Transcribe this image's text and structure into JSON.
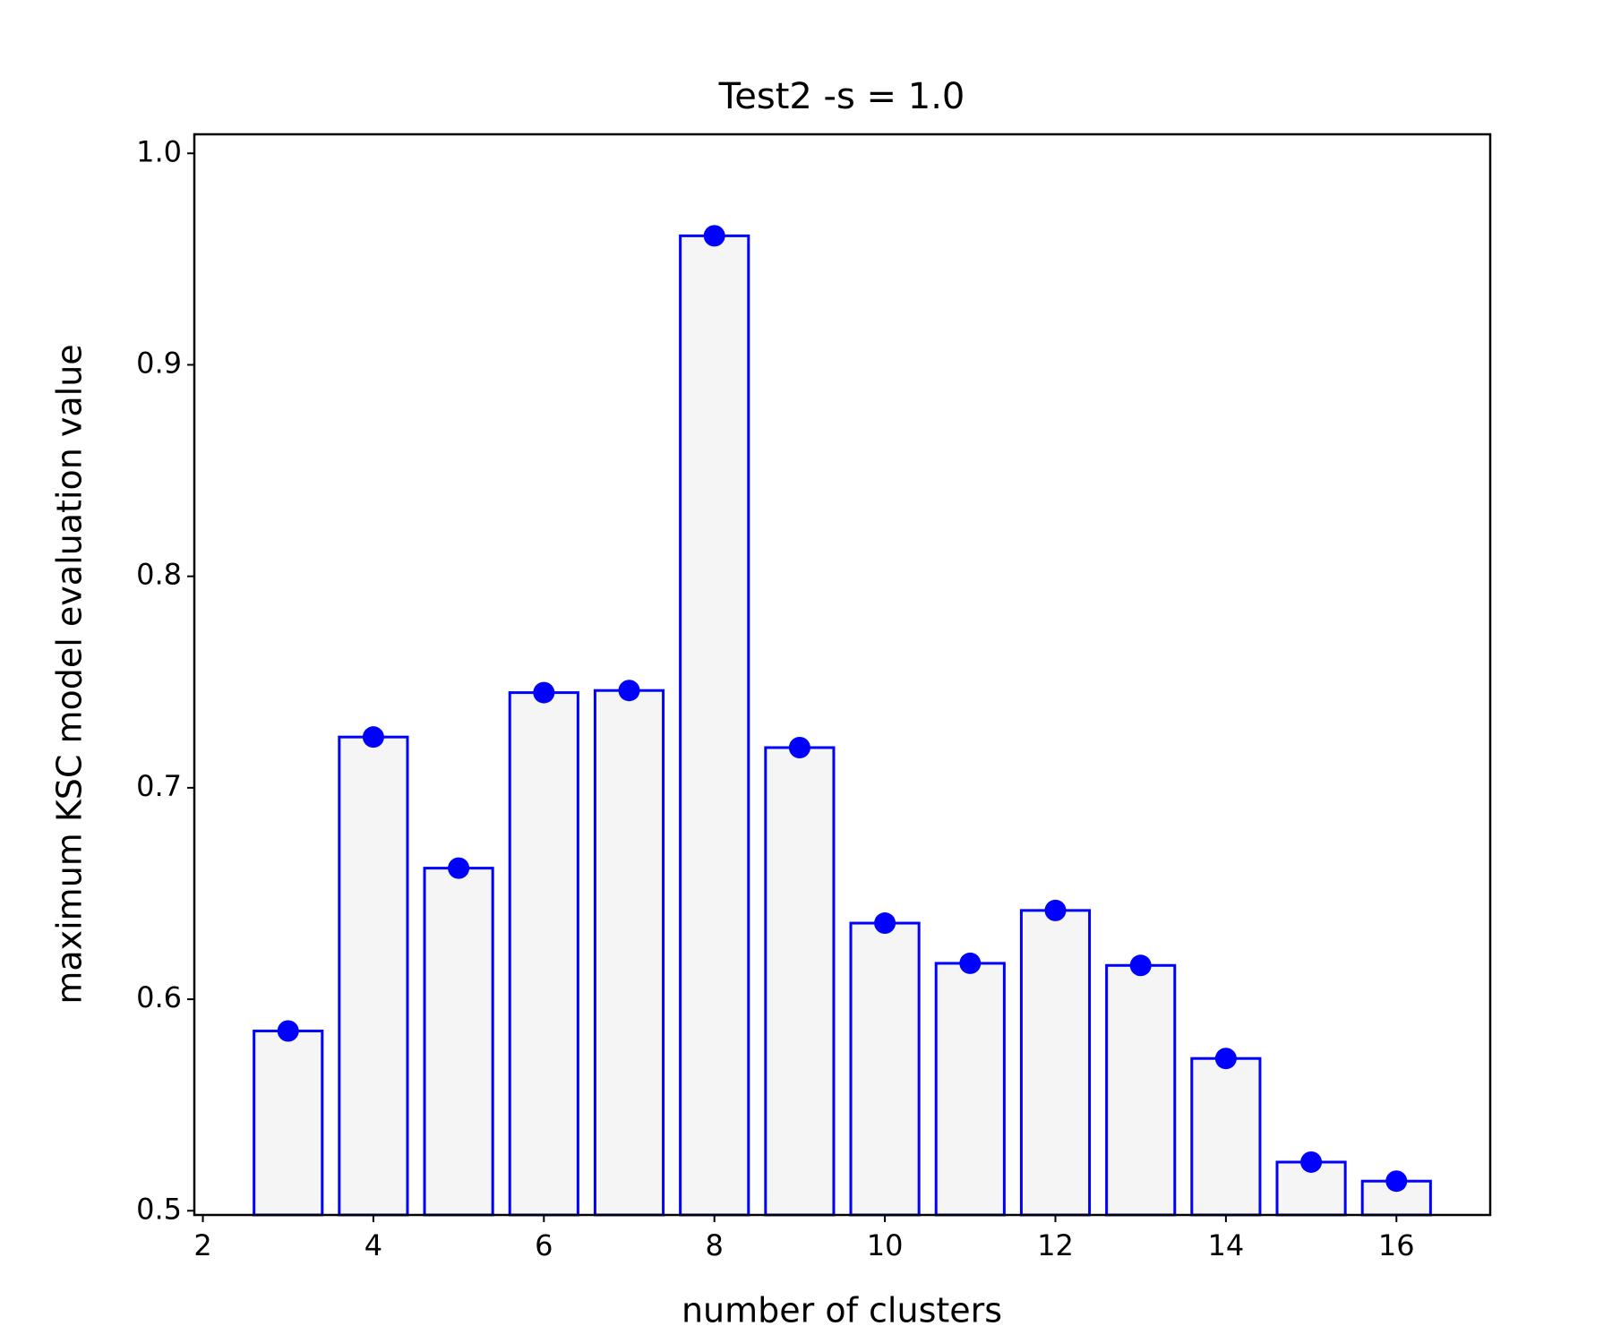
{
  "chart_data": {
    "type": "bar",
    "title": "Test2 -s = 1.0",
    "xlabel": "number of clusters",
    "ylabel": "maximum KSC model evaluation value",
    "x": [
      3,
      4,
      5,
      6,
      7,
      8,
      9,
      10,
      11,
      12,
      13,
      14,
      15,
      16
    ],
    "values": [
      0.585,
      0.724,
      0.662,
      0.745,
      0.746,
      0.961,
      0.719,
      0.636,
      0.617,
      0.642,
      0.616,
      0.572,
      0.523,
      0.514
    ],
    "bar_width": 0.8,
    "color": "#0000ff",
    "fill": "#f5f5f5",
    "marker": "o",
    "xlim": [
      1.9,
      17.1
    ],
    "xticks": [
      2,
      4,
      6,
      8,
      10,
      12,
      14,
      16
    ],
    "ylim": [
      0.498,
      1.009
    ],
    "yticks": [
      0.5,
      0.6,
      0.7,
      0.8,
      0.9,
      {
        "value": 1,
        "label": "1.0"
      }
    ],
    "grid": false
  }
}
